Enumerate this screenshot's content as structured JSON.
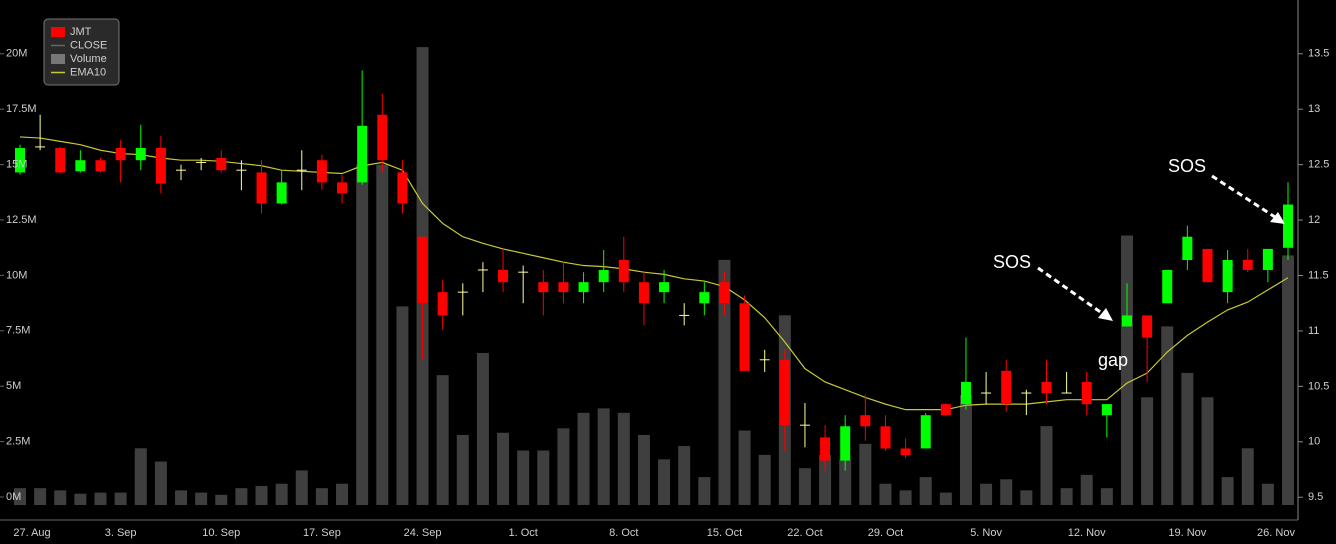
{
  "chart_data": {
    "type": "candlestick",
    "categories": [
      "27. Aug",
      null,
      null,
      null,
      null,
      "3. Sep",
      null,
      null,
      null,
      null,
      "10. Sep",
      null,
      null,
      null,
      null,
      "17. Sep",
      null,
      null,
      null,
      null,
      "24. Sep",
      null,
      null,
      null,
      null,
      "1. Oct",
      null,
      null,
      null,
      null,
      "8. Oct",
      null,
      null,
      null,
      null,
      "15. Oct",
      null,
      null,
      null,
      "22. Oct",
      null,
      null,
      null,
      "29. Oct",
      null,
      null,
      null,
      null,
      "5. Nov",
      null,
      null,
      null,
      null,
      "12. Nov",
      null,
      null,
      null,
      null,
      "19. Nov",
      null,
      null,
      null,
      null,
      "26. Nov"
    ],
    "series": [
      {
        "name": "JMT",
        "axis": "y2",
        "up_color": "#00ff00",
        "down_color": "#ff0000",
        "doji_color": "#ffff99",
        "open": [
          12.43,
          12.66,
          12.65,
          12.44,
          12.54,
          12.65,
          12.54,
          12.65,
          12.45,
          12.52,
          12.56,
          12.45,
          12.43,
          12.15,
          12.45,
          12.54,
          12.34,
          12.34,
          12.95,
          12.43,
          11.85,
          11.35,
          11.35,
          11.55,
          11.55,
          11.53,
          11.44,
          11.44,
          11.35,
          11.44,
          11.64,
          11.44,
          11.35,
          11.14,
          11.25,
          11.44,
          11.25,
          10.74,
          10.74,
          10.15,
          10.04,
          9.83,
          10.24,
          10.14,
          9.94,
          9.94,
          10.34,
          10.34,
          10.44,
          10.64,
          10.44,
          10.54,
          10.44,
          10.54,
          10.24,
          11.04,
          11.14,
          11.25,
          11.64,
          11.74,
          11.35,
          11.64,
          11.55,
          11.75
        ],
        "high": [
          12.68,
          12.95,
          12.66,
          12.63,
          12.56,
          12.72,
          12.86,
          12.76,
          12.5,
          12.56,
          12.63,
          12.54,
          12.54,
          12.45,
          12.63,
          12.59,
          12.41,
          13.35,
          13.14,
          12.54,
          11.85,
          11.46,
          11.43,
          11.62,
          11.74,
          11.59,
          11.55,
          11.62,
          11.53,
          11.73,
          11.85,
          11.53,
          11.55,
          11.25,
          11.44,
          11.53,
          11.32,
          10.83,
          10.83,
          10.35,
          10.15,
          10.24,
          10.42,
          10.24,
          10.03,
          10.26,
          10.35,
          10.94,
          10.63,
          10.74,
          10.47,
          10.74,
          10.63,
          10.63,
          10.34,
          11.43,
          11.14,
          11.55,
          11.95,
          11.74,
          11.73,
          11.74,
          11.74,
          12.34
        ],
        "low": [
          12.41,
          12.63,
          12.42,
          12.43,
          12.43,
          12.34,
          12.45,
          12.24,
          12.36,
          12.45,
          12.43,
          12.27,
          12.06,
          12.14,
          12.27,
          12.27,
          12.15,
          12.32,
          12.43,
          12.06,
          10.74,
          11.01,
          11.14,
          11.35,
          11.35,
          11.25,
          11.14,
          11.25,
          11.25,
          11.35,
          11.35,
          11.05,
          11.25,
          11.05,
          11.14,
          11.14,
          10.64,
          10.63,
          9.92,
          9.95,
          9.74,
          9.74,
          10.01,
          9.92,
          9.85,
          9.94,
          10.23,
          10.29,
          10.34,
          10.27,
          10.24,
          10.34,
          10.44,
          10.24,
          10.04,
          11.04,
          10.54,
          11.25,
          11.55,
          11.44,
          11.25,
          11.53,
          11.44,
          11.64
        ],
        "close": [
          12.65,
          12.66,
          12.43,
          12.54,
          12.44,
          12.54,
          12.65,
          12.33,
          12.45,
          12.52,
          12.45,
          12.45,
          12.15,
          12.34,
          12.45,
          12.34,
          12.24,
          12.85,
          12.54,
          12.15,
          11.25,
          11.14,
          11.35,
          11.55,
          11.44,
          11.53,
          11.35,
          11.35,
          11.44,
          11.55,
          11.44,
          11.25,
          11.44,
          11.14,
          11.35,
          11.25,
          10.64,
          10.74,
          10.15,
          10.15,
          9.83,
          10.14,
          10.14,
          9.94,
          9.88,
          10.24,
          10.24,
          10.54,
          10.44,
          10.34,
          10.44,
          10.44,
          10.44,
          10.34,
          10.34,
          11.14,
          10.94,
          11.55,
          11.85,
          11.44,
          11.64,
          11.55,
          11.74,
          12.14
        ]
      },
      {
        "name": "CLOSE",
        "color": "#666666",
        "hidden": true
      },
      {
        "name": "Volume",
        "axis": "y",
        "color": "#4a4a4a",
        "values": [
          400000,
          400000,
          300000,
          150000,
          200000,
          200000,
          2200000,
          1600000,
          300000,
          200000,
          100000,
          400000,
          500000,
          600000,
          1200000,
          400000,
          600000,
          15000000,
          15000000,
          8600000,
          20300000,
          5500000,
          2800000,
          6500000,
          2900000,
          2100000,
          2100000,
          3100000,
          3800000,
          4000000,
          3800000,
          2800000,
          1700000,
          2300000,
          900000,
          10700000,
          3000000,
          1900000,
          8200000,
          1300000,
          1900000,
          1700000,
          2400000,
          600000,
          300000,
          900000,
          200000,
          4600000,
          600000,
          800000,
          300000,
          3200000,
          400000,
          1000000,
          400000,
          11800000,
          4500000,
          7700000,
          5600000,
          4500000,
          900000,
          2200000,
          600000,
          10900000
        ]
      },
      {
        "name": "EMA10",
        "axis": "y2",
        "color": "#c8c832",
        "values": [
          12.75,
          12.74,
          12.71,
          12.68,
          12.63,
          12.6,
          12.59,
          12.56,
          12.54,
          12.54,
          12.53,
          12.51,
          12.49,
          12.45,
          12.44,
          12.43,
          12.42,
          12.49,
          12.52,
          12.45,
          12.15,
          11.97,
          11.85,
          11.79,
          11.74,
          11.7,
          11.66,
          11.62,
          11.59,
          11.58,
          11.56,
          11.53,
          11.51,
          11.47,
          11.45,
          11.4,
          11.28,
          11.12,
          10.9,
          10.66,
          10.54,
          10.47,
          10.4,
          10.34,
          10.29,
          10.29,
          10.29,
          10.33,
          10.34,
          10.34,
          10.34,
          10.36,
          10.38,
          10.38,
          10.38,
          10.53,
          10.62,
          10.81,
          10.96,
          11.08,
          11.19,
          11.26,
          11.37,
          11.48
        ]
      }
    ],
    "ylim": [
      -360000,
      22200000
    ],
    "yticks": [
      {
        "value": 0,
        "label": "0M"
      },
      {
        "value": 2500000,
        "label": "2.5M"
      },
      {
        "value": 5000000,
        "label": "5M"
      },
      {
        "value": 7500000,
        "label": "7.5M"
      },
      {
        "value": 10000000,
        "label": "10M"
      },
      {
        "value": 12500000,
        "label": "12.5M"
      },
      {
        "value": 15000000,
        "label": "15M"
      },
      {
        "value": 17500000,
        "label": "17.5M"
      },
      {
        "value": 20000000,
        "label": "20M"
      }
    ],
    "y2lim": [
      9.43,
      13.94
    ],
    "y2ticks": [
      9.5,
      10,
      10.5,
      11,
      11.5,
      12,
      12.5,
      13,
      13.5
    ],
    "legend": "top-left",
    "annotations": [
      "SOS",
      "SOS",
      "gap"
    ]
  }
}
